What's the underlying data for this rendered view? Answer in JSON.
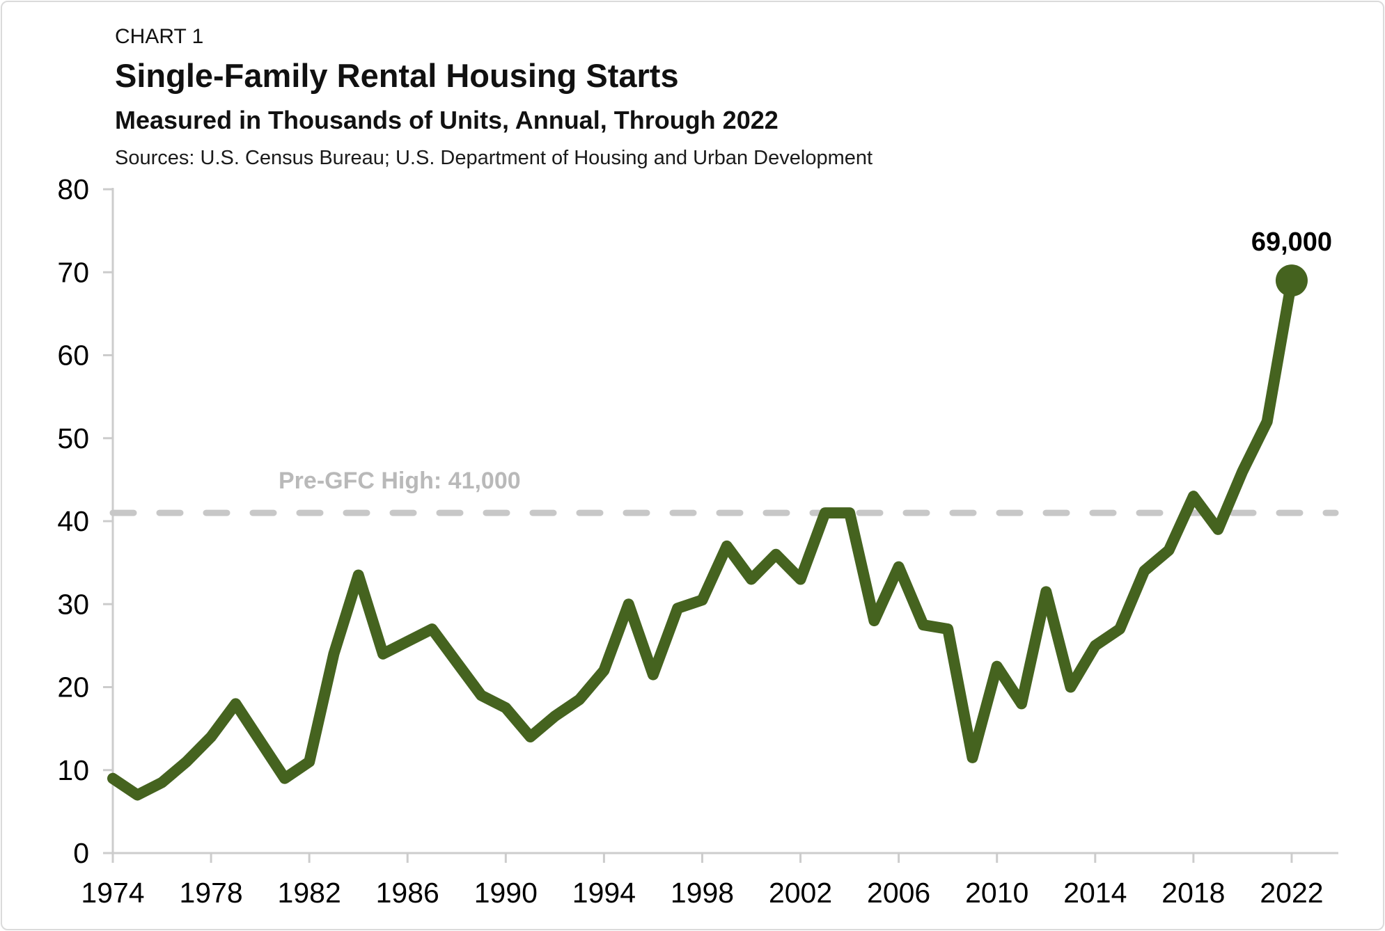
{
  "header": {
    "kicker": "CHART 1",
    "title": "Single-Family Rental Housing Starts",
    "subtitle": "Measured in Thousands of Units, Annual, Through 2022",
    "sources": "Sources: U.S. Census Bureau; U.S. Department of Housing and Urban Development"
  },
  "chart_data": {
    "type": "line",
    "title": "Single-Family Rental Housing Starts",
    "subtitle": "Measured in Thousands of Units, Annual, Through 2022",
    "sources": "Sources: U.S. Census Bureau; U.S. Department of Housing and Urban Development",
    "x": [
      1974,
      1975,
      1976,
      1977,
      1978,
      1979,
      1980,
      1981,
      1982,
      1983,
      1984,
      1985,
      1986,
      1987,
      1988,
      1989,
      1990,
      1991,
      1992,
      1993,
      1994,
      1995,
      1996,
      1997,
      1998,
      1999,
      2000,
      2001,
      2002,
      2003,
      2004,
      2005,
      2006,
      2007,
      2008,
      2009,
      2010,
      2011,
      2012,
      2013,
      2014,
      2015,
      2016,
      2017,
      2018,
      2019,
      2020,
      2021,
      2022
    ],
    "values": [
      9,
      7,
      8.5,
      11,
      14,
      18,
      13.5,
      9,
      11,
      24,
      33.5,
      24,
      25.5,
      27,
      23,
      19,
      17.5,
      14,
      16.5,
      18.5,
      22,
      30,
      21.5,
      29.5,
      30.5,
      37,
      33,
      36,
      33,
      41,
      41,
      28,
      34.5,
      27.5,
      27,
      11.5,
      22.5,
      18,
      31.5,
      20,
      25,
      27,
      34,
      36.5,
      43,
      39,
      46,
      52,
      69
    ],
    "xlabel": "",
    "ylabel": "",
    "ylim": [
      0,
      80
    ],
    "ytick_step": 10,
    "xticks": [
      1974,
      1978,
      1982,
      1986,
      1990,
      1994,
      1998,
      2002,
      2006,
      2010,
      2014,
      2018,
      2022
    ],
    "grid": "off",
    "threshold": {
      "value": 41,
      "label": "Pre-GFC High: 41,000"
    },
    "end_point": {
      "year": 2022,
      "value": 69,
      "label": "69,000"
    },
    "colors": {
      "line": "#45631f",
      "threshold_line": "#c7c7c7",
      "threshold_label": "#b9b9b9",
      "axis": "#cccccc",
      "text": "#000000"
    }
  }
}
